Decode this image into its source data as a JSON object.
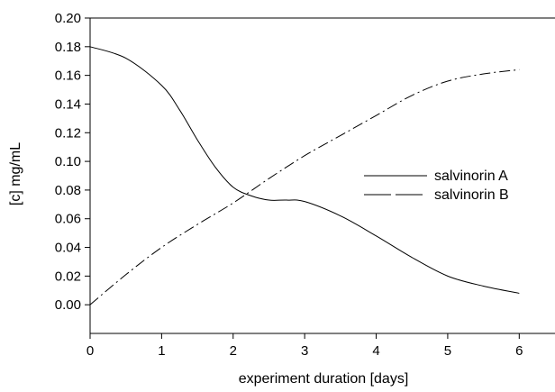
{
  "chart_data": {
    "type": "line",
    "title": "",
    "xlabel": "experiment duration [days]",
    "ylabel": "[c] mg/mL",
    "xlim": [
      0,
      6.5
    ],
    "ylim": [
      -0.02,
      0.2
    ],
    "xticks": [
      0,
      1,
      2,
      3,
      4,
      5,
      6
    ],
    "yticks": [
      0.0,
      0.02,
      0.04,
      0.06,
      0.08,
      0.1,
      0.12,
      0.14,
      0.16,
      0.18,
      0.2
    ],
    "xtick_labels": [
      "0",
      "1",
      "2",
      "3",
      "4",
      "5",
      "6"
    ],
    "ytick_labels": [
      "0.00",
      "0.02",
      "0.04",
      "0.06",
      "0.08",
      "0.10",
      "0.12",
      "0.14",
      "0.16",
      "0.18",
      "0.20"
    ],
    "grid": false,
    "legend_position": "right-middle",
    "series": [
      {
        "name": "salvinorin A",
        "line_style": "solid",
        "color": "#000000",
        "x": [
          0,
          0.5,
          1,
          1.25,
          1.5,
          1.75,
          2,
          2.25,
          2.5,
          2.75,
          3,
          3.5,
          4,
          4.5,
          5,
          5.5,
          6
        ],
        "y": [
          0.18,
          0.172,
          0.153,
          0.136,
          0.115,
          0.096,
          0.082,
          0.076,
          0.073,
          0.073,
          0.072,
          0.062,
          0.048,
          0.033,
          0.02,
          0.013,
          0.008
        ]
      },
      {
        "name": "salvinorin B",
        "line_style": "dashdot",
        "color": "#000000",
        "x": [
          0,
          0.5,
          1,
          1.5,
          2,
          2.5,
          3,
          3.5,
          4,
          4.5,
          5,
          5.5,
          6
        ],
        "y": [
          0.0,
          0.021,
          0.04,
          0.056,
          0.071,
          0.088,
          0.104,
          0.118,
          0.132,
          0.146,
          0.156,
          0.161,
          0.164
        ]
      }
    ]
  }
}
